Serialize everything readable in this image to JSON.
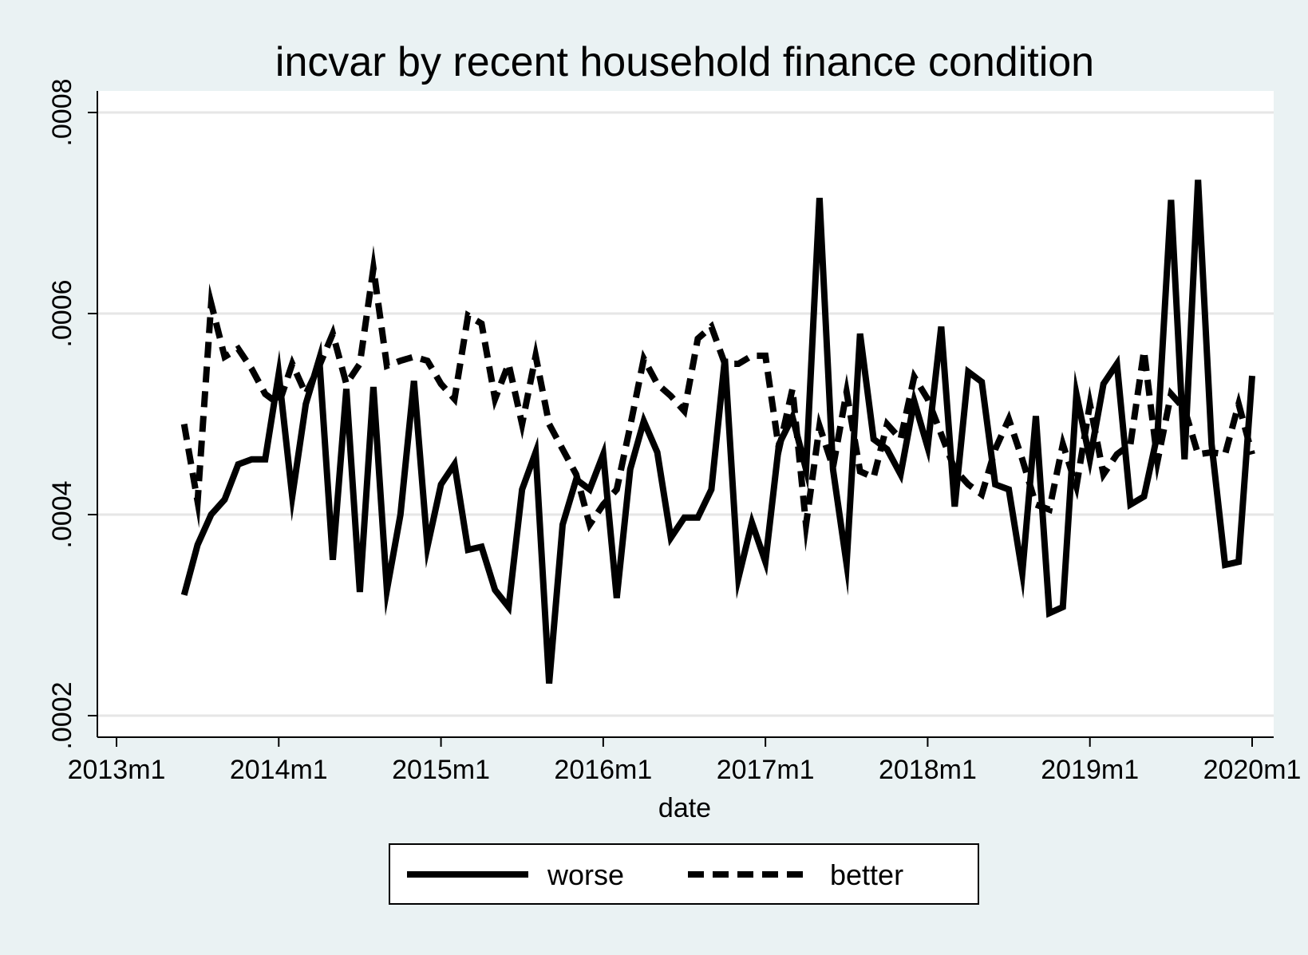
{
  "chart_data": {
    "type": "line",
    "title": "incvar by recent household finance condition",
    "xlabel": "date",
    "ylabel": "",
    "xlim": [
      "2013-01",
      "2020-01"
    ],
    "ylim": [
      0.0002,
      0.0008
    ],
    "x_ticks": [
      {
        "date": "2013-01",
        "label": "2013m1"
      },
      {
        "date": "2014-01",
        "label": "2014m1"
      },
      {
        "date": "2015-01",
        "label": "2015m1"
      },
      {
        "date": "2016-01",
        "label": "2016m1"
      },
      {
        "date": "2017-01",
        "label": "2017m1"
      },
      {
        "date": "2018-01",
        "label": "2018m1"
      },
      {
        "date": "2019-01",
        "label": "2019m1"
      },
      {
        "date": "2020-01",
        "label": "2020m1"
      }
    ],
    "y_ticks": [
      {
        "value": 0.0002,
        "label": ".0002"
      },
      {
        "value": 0.0004,
        "label": ".0004"
      },
      {
        "value": 0.0006,
        "label": ".0006"
      },
      {
        "value": 0.0008,
        "label": ".0008"
      }
    ],
    "grid": true,
    "legend_position": "bottom",
    "x": [
      "2013-06",
      "2013-07",
      "2013-08",
      "2013-09",
      "2013-10",
      "2013-11",
      "2013-12",
      "2014-01",
      "2014-02",
      "2014-03",
      "2014-04",
      "2014-05",
      "2014-06",
      "2014-07",
      "2014-08",
      "2014-09",
      "2014-10",
      "2014-11",
      "2014-12",
      "2015-01",
      "2015-02",
      "2015-03",
      "2015-04",
      "2015-05",
      "2015-06",
      "2015-07",
      "2015-08",
      "2015-09",
      "2015-10",
      "2015-11",
      "2015-12",
      "2016-01",
      "2016-02",
      "2016-03",
      "2016-04",
      "2016-05",
      "2016-06",
      "2016-07",
      "2016-08",
      "2016-09",
      "2016-10",
      "2016-11",
      "2016-12",
      "2017-01",
      "2017-02",
      "2017-03",
      "2017-04",
      "2017-05",
      "2017-06",
      "2017-07",
      "2017-08",
      "2017-09",
      "2017-10",
      "2017-11",
      "2017-12",
      "2018-01",
      "2018-02",
      "2018-03",
      "2018-04",
      "2018-05",
      "2018-06",
      "2018-07",
      "2018-08",
      "2018-09",
      "2018-10",
      "2018-11",
      "2018-12",
      "2019-01",
      "2019-02",
      "2019-03",
      "2019-04",
      "2019-05",
      "2019-06",
      "2019-07",
      "2019-08",
      "2019-09",
      "2019-10",
      "2019-11",
      "2019-12",
      "2020-01"
    ],
    "series": [
      {
        "name": "worse",
        "style": "solid",
        "values": [
          0.00032,
          0.00037,
          0.0004,
          0.000415,
          0.00045,
          0.000455,
          0.000455,
          0.00054,
          0.000418,
          0.00051,
          0.000555,
          0.000355,
          0.000525,
          0.000323,
          0.000527,
          0.000325,
          0.0004,
          0.000533,
          0.000368,
          0.00043,
          0.00045,
          0.000365,
          0.000368,
          0.000325,
          0.000308,
          0.000425,
          0.000462,
          0.000232,
          0.00039,
          0.000435,
          0.000425,
          0.00046,
          0.000317,
          0.000445,
          0.000493,
          0.000462,
          0.000377,
          0.000397,
          0.000397,
          0.000425,
          0.000555,
          0.000337,
          0.000392,
          0.000353,
          0.00047,
          0.000497,
          0.000445,
          0.000715,
          0.000445,
          0.000351,
          0.00058,
          0.000475,
          0.000465,
          0.00044,
          0.000513,
          0.000467,
          0.000587,
          0.000408,
          0.000542,
          0.000532,
          0.00043,
          0.000425,
          0.000342,
          0.000498,
          0.000302,
          0.000308,
          0.00052,
          0.000455,
          0.00053,
          0.00055,
          0.00041,
          0.000418,
          0.00048,
          0.000713,
          0.000455,
          0.000733,
          0.00047,
          0.00035,
          0.000353,
          0.000538
        ]
      },
      {
        "name": "better",
        "style": "dashed",
        "values": [
          0.00049,
          0.000413,
          0.00061,
          0.000557,
          0.000565,
          0.000545,
          0.00052,
          0.00051,
          0.00055,
          0.00052,
          0.000548,
          0.00058,
          0.00053,
          0.00055,
          0.000645,
          0.000548,
          0.000553,
          0.000557,
          0.000553,
          0.00053,
          0.000515,
          0.000598,
          0.00059,
          0.000515,
          0.00055,
          0.00049,
          0.000558,
          0.00049,
          0.000465,
          0.00044,
          0.00039,
          0.00041,
          0.000425,
          0.000488,
          0.000555,
          0.00053,
          0.000518,
          0.000503,
          0.000575,
          0.000587,
          0.00055,
          0.00055,
          0.000558,
          0.000558,
          0.000465,
          0.000525,
          0.00039,
          0.000488,
          0.000447,
          0.000522,
          0.000443,
          0.000437,
          0.00049,
          0.000475,
          0.000537,
          0.000515,
          0.00048,
          0.000445,
          0.00043,
          0.00042,
          0.000465,
          0.000495,
          0.000455,
          0.00041,
          0.000405,
          0.00047,
          0.000428,
          0.00051,
          0.00044,
          0.00046,
          0.00047,
          0.000563,
          0.000453,
          0.00052,
          0.000505,
          0.00046,
          0.000462,
          0.00046,
          0.00051,
          0.00046
        ]
      }
    ]
  }
}
